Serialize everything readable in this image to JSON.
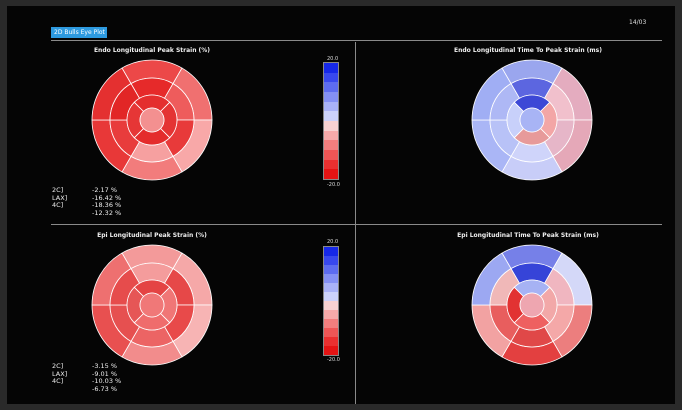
{
  "header": {
    "tab_label": "2D Bulls Eye Plot",
    "date": "14/03"
  },
  "panels": [
    {
      "title": "Endo Longitudinal Peak Strain (%)",
      "scale_top": "20.0",
      "scale_bottom": "-20.0",
      "values": [
        {
          "label": "2C]",
          "value": "-2.17 %"
        },
        {
          "label": "LAX]",
          "value": "-16.42 %"
        },
        {
          "label": "4C]",
          "value": "-18.36 %"
        },
        {
          "label": "",
          "value": "-12.32 %"
        }
      ],
      "segment_colors": [
        "#ec4848",
        "#f07070",
        "#f8a8a8",
        "#f27c7c",
        "#e83838",
        "#e43030",
        "#e62a2a",
        "#ee5c5c",
        "#e83a3a",
        "#f6a0a0",
        "#e83c3c",
        "#e22626",
        "#e42e2e",
        "#e43434",
        "#e42c2c",
        "#e63636",
        "#f39090"
      ]
    },
    {
      "title": "Endo Longitudinal Time To Peak Strain (ms)",
      "segment_colors": [
        "#9aa6ee",
        "#e4acbf",
        "#e5a8b8",
        "#c8cdf8",
        "#aab6f6",
        "#a0aef4",
        "#5c66e0",
        "#f1c0cc",
        "#e6b6c8",
        "#cfd4fa",
        "#b8c2f7",
        "#aeb8f5",
        "#3c48d6",
        "#f3a6a6",
        "#e79a9a",
        "#c8d0fa",
        "#a8b4f5"
      ]
    },
    {
      "title": "Epi Longitudinal Peak Strain (%)",
      "scale_top": "20.0",
      "scale_bottom": "-20.0",
      "values": [
        {
          "label": "2C]",
          "value": "-3.15 %"
        },
        {
          "label": "LAX]",
          "value": "-9.01 %"
        },
        {
          "label": "4C]",
          "value": "-10.03 %"
        },
        {
          "label": "",
          "value": "-6.73 %"
        }
      ],
      "segment_colors": [
        "#f39a9a",
        "#f5a8a8",
        "#f7b4b4",
        "#f28c8c",
        "#e85050",
        "#ee7070",
        "#f49c9c",
        "#e64848",
        "#e84a4a",
        "#ec6464",
        "#e65050",
        "#e64c4c",
        "#e44444",
        "#f07676",
        "#ef6c6c",
        "#e65656",
        "#f07878"
      ]
    },
    {
      "title": "Epi Longitudinal Time To Peak Strain (ms)",
      "segment_colors": [
        "#7680e8",
        "#d4d8f8",
        "#ec7e7e",
        "#e34040",
        "#f2a2a2",
        "#9ca8f2",
        "#3644d8",
        "#f0b6c0",
        "#f4a8a8",
        "#e04848",
        "#e85e5e",
        "#f0b8b8",
        "#a6b2f4",
        "#f2a8a8",
        "#ee6060",
        "#e23232",
        "#eea6b0"
      ]
    }
  ],
  "colorbar_colors": [
    "#1628e8",
    "#3848ee",
    "#5d6cf0",
    "#8490f4",
    "#a9b2f7",
    "#ccd2fa",
    "#f7d2d2",
    "#f6aaaa",
    "#f27e7e",
    "#ee5656",
    "#ea3030",
    "#e41414"
  ]
}
